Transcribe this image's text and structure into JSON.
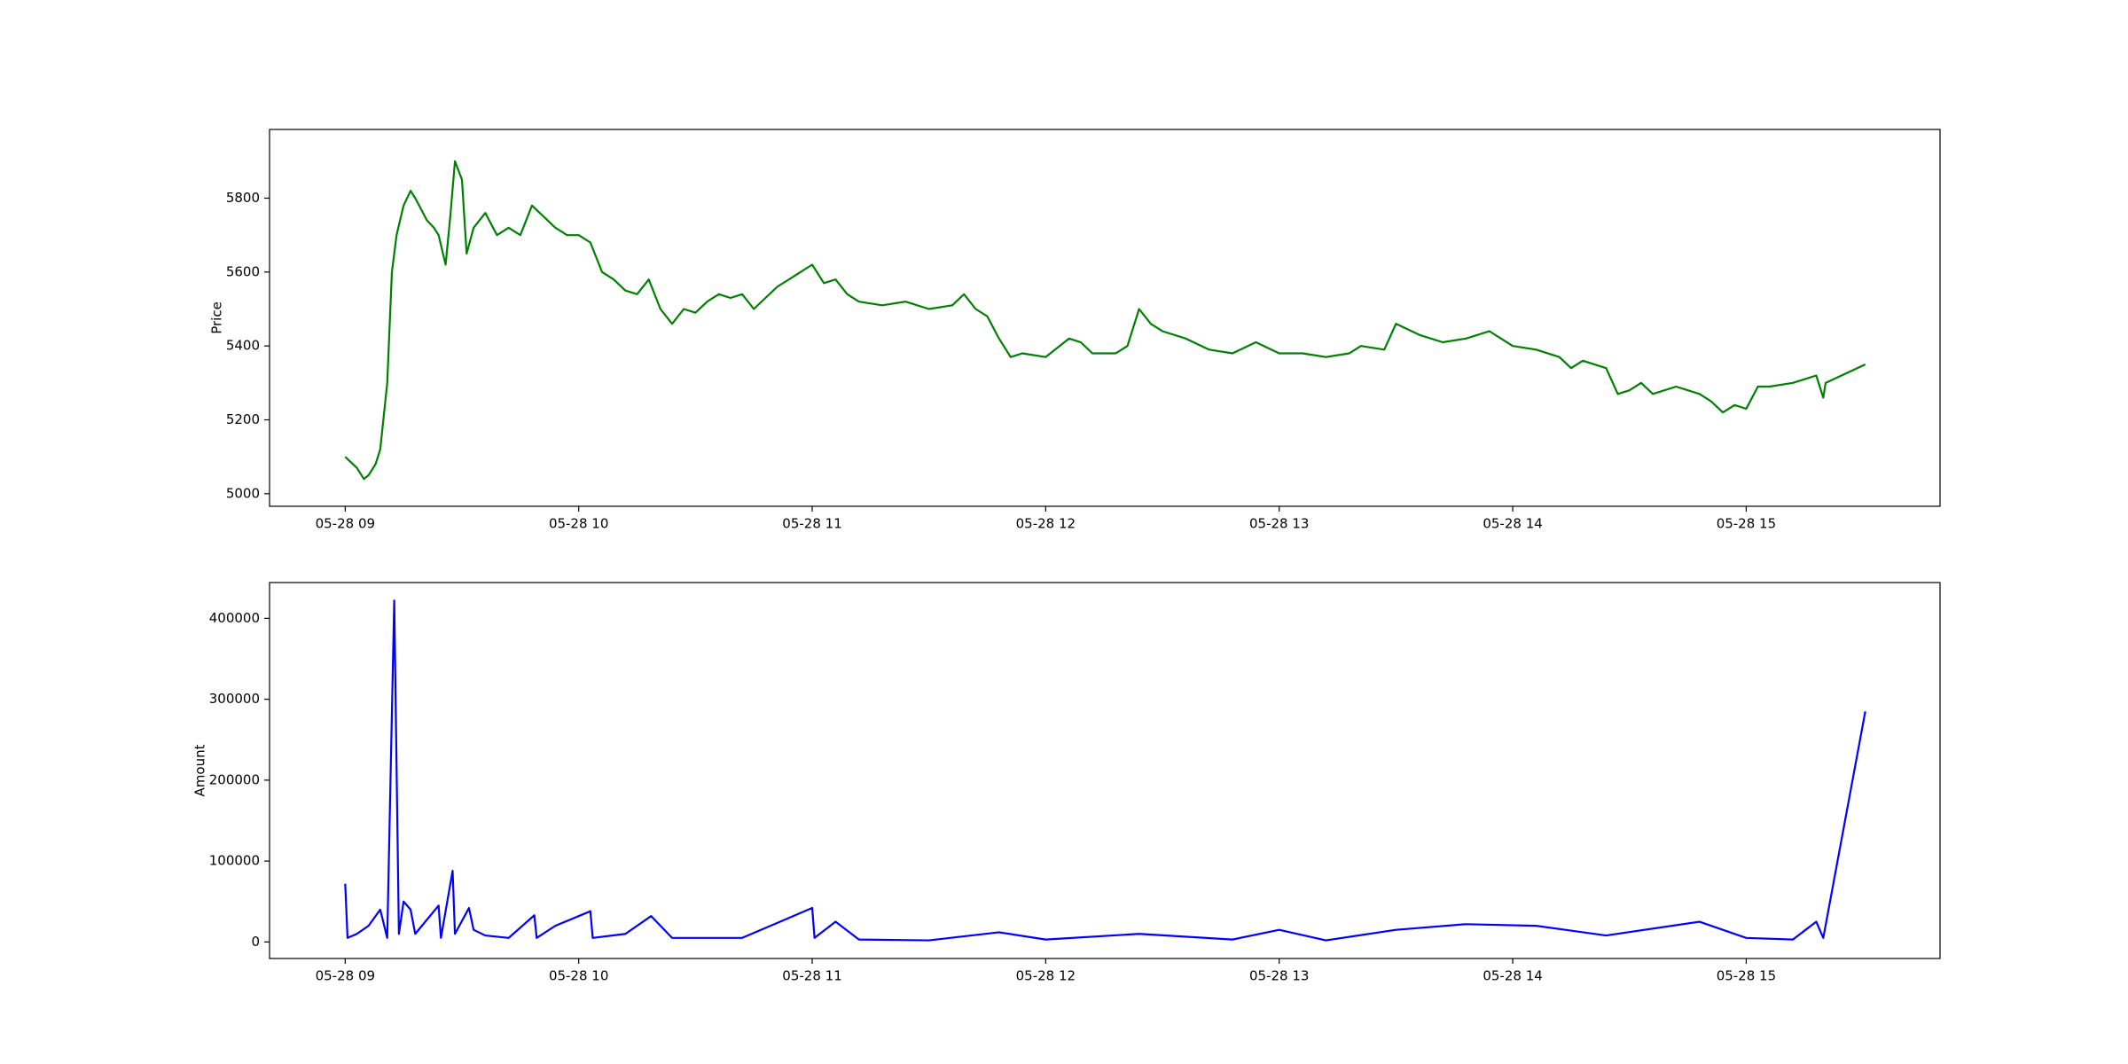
{
  "chart_data": [
    {
      "type": "line",
      "ylabel": "Price",
      "x": [
        9.0,
        9.05,
        9.08,
        9.1,
        9.13,
        9.15,
        9.18,
        9.2,
        9.22,
        9.25,
        9.28,
        9.3,
        9.35,
        9.38,
        9.4,
        9.43,
        9.45,
        9.47,
        9.5,
        9.52,
        9.55,
        9.6,
        9.65,
        9.7,
        9.75,
        9.8,
        9.85,
        9.9,
        9.95,
        10.0,
        10.05,
        10.1,
        10.15,
        10.2,
        10.25,
        10.3,
        10.35,
        10.4,
        10.45,
        10.5,
        10.55,
        10.6,
        10.65,
        10.7,
        10.75,
        10.8,
        10.85,
        10.9,
        10.95,
        11.0,
        11.05,
        11.1,
        11.15,
        11.2,
        11.3,
        11.4,
        11.5,
        11.6,
        11.65,
        11.7,
        11.75,
        11.8,
        11.85,
        11.9,
        12.0,
        12.1,
        12.15,
        12.2,
        12.3,
        12.35,
        12.4,
        12.45,
        12.5,
        12.6,
        12.7,
        12.8,
        12.9,
        13.0,
        13.1,
        13.2,
        13.3,
        13.35,
        13.45,
        13.5,
        13.6,
        13.7,
        13.8,
        13.9,
        14.0,
        14.1,
        14.2,
        14.25,
        14.3,
        14.4,
        14.45,
        14.5,
        14.55,
        14.6,
        14.7,
        14.8,
        14.85,
        14.9,
        14.95,
        15.0,
        15.05,
        15.1,
        15.2,
        15.25,
        15.3,
        15.33,
        15.34,
        15.51
      ],
      "series": [
        {
          "name": "Price",
          "color": "#008000",
          "values": [
            5100,
            5070,
            5040,
            5050,
            5080,
            5120,
            5300,
            5600,
            5700,
            5780,
            5820,
            5800,
            5740,
            5720,
            5700,
            5620,
            5750,
            5900,
            5850,
            5650,
            5720,
            5760,
            5700,
            5720,
            5700,
            5780,
            5750,
            5720,
            5700,
            5700,
            5680,
            5600,
            5580,
            5550,
            5540,
            5580,
            5500,
            5460,
            5500,
            5490,
            5520,
            5540,
            5530,
            5540,
            5500,
            5530,
            5560,
            5580,
            5600,
            5620,
            5570,
            5580,
            5540,
            5520,
            5510,
            5520,
            5500,
            5510,
            5540,
            5500,
            5480,
            5420,
            5370,
            5380,
            5370,
            5420,
            5410,
            5380,
            5380,
            5400,
            5500,
            5460,
            5440,
            5420,
            5390,
            5380,
            5410,
            5380,
            5380,
            5370,
            5380,
            5400,
            5390,
            5460,
            5430,
            5410,
            5420,
            5440,
            5400,
            5390,
            5370,
            5340,
            5360,
            5340,
            5270,
            5280,
            5300,
            5270,
            5290,
            5270,
            5250,
            5220,
            5240,
            5230,
            5290,
            5290,
            5300,
            5310,
            5320,
            5260,
            5300,
            5350
          ]
        }
      ],
      "xlim": [
        8.676,
        15.83
      ],
      "xticks": [
        {
          "value": 9,
          "label": "05-28 09"
        },
        {
          "value": 10,
          "label": "05-28 10"
        },
        {
          "value": 11,
          "label": "05-28 11"
        },
        {
          "value": 12,
          "label": "05-28 12"
        },
        {
          "value": 13,
          "label": "05-28 13"
        },
        {
          "value": 14,
          "label": "05-28 14"
        },
        {
          "value": 15,
          "label": "05-28 15"
        }
      ],
      "ylim": [
        4966,
        5986
      ],
      "yticks": [
        5000,
        5200,
        5400,
        5600,
        5800
      ]
    },
    {
      "type": "line",
      "ylabel": "Amount",
      "x": [
        9.0,
        9.01,
        9.05,
        9.1,
        9.15,
        9.18,
        9.21,
        9.23,
        9.25,
        9.28,
        9.3,
        9.4,
        9.41,
        9.46,
        9.47,
        9.53,
        9.55,
        9.6,
        9.7,
        9.81,
        9.82,
        9.9,
        10.05,
        10.06,
        10.2,
        10.31,
        10.35,
        10.4,
        10.7,
        11.0,
        11.01,
        11.1,
        11.2,
        11.5,
        11.8,
        12.0,
        12.4,
        12.8,
        13.0,
        13.2,
        13.5,
        13.8,
        14.1,
        14.4,
        14.8,
        15.0,
        15.2,
        15.3,
        15.33,
        15.51
      ],
      "series": [
        {
          "name": "Amount",
          "color": "#0000ff",
          "values": [
            72000,
            5000,
            10000,
            20000,
            40000,
            5000,
            422000,
            10000,
            50000,
            40000,
            10000,
            45000,
            5000,
            88000,
            10000,
            42000,
            15000,
            8000,
            5000,
            33000,
            5000,
            20000,
            38000,
            5000,
            10000,
            32000,
            20000,
            5000,
            5000,
            42000,
            5000,
            25000,
            3000,
            2000,
            12000,
            3000,
            10000,
            3000,
            15000,
            2000,
            15000,
            22000,
            20000,
            8000,
            25000,
            5000,
            3000,
            25000,
            5000,
            285000
          ]
        }
      ],
      "xlim": [
        8.676,
        15.83
      ],
      "xticks": [
        {
          "value": 9,
          "label": "05-28 09"
        },
        {
          "value": 10,
          "label": "05-28 10"
        },
        {
          "value": 11,
          "label": "05-28 11"
        },
        {
          "value": 12,
          "label": "05-28 12"
        },
        {
          "value": 13,
          "label": "05-28 13"
        },
        {
          "value": 14,
          "label": "05-28 14"
        },
        {
          "value": 15,
          "label": "05-28 15"
        }
      ],
      "ylim": [
        -20426,
        444255
      ],
      "yticks": [
        0,
        100000,
        200000,
        300000,
        400000
      ]
    }
  ]
}
